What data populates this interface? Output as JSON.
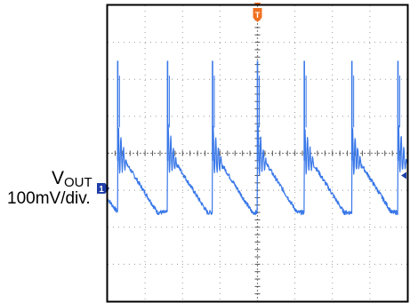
{
  "chart_data": {
    "type": "line",
    "title": "",
    "xlabel": "",
    "ylabel": "",
    "channel": {
      "name_main": "V",
      "name_sub": "OUT",
      "scale": "100mV/div.",
      "marker": "1",
      "marker_color": "#1f3fa8"
    },
    "trigger": {
      "marker": "T",
      "color": "#f07020"
    },
    "trace_color": "#3a78e8",
    "grid": {
      "h_divisions": 8,
      "v_divisions": 8,
      "minor_per_division": 5
    },
    "xlim": [
      0,
      8
    ],
    "ylim": [
      -4,
      4
    ],
    "ripple": {
      "spike_times_div": [
        0.27,
        1.6,
        2.8,
        4.0,
        5.25,
        6.52,
        7.75
      ],
      "spike_peak_div": 2.5,
      "spike_base_div": 0.1,
      "ring_amplitude_div": 0.7,
      "decay_end_div": -1.6,
      "trace_noise_div": 0.06
    }
  }
}
